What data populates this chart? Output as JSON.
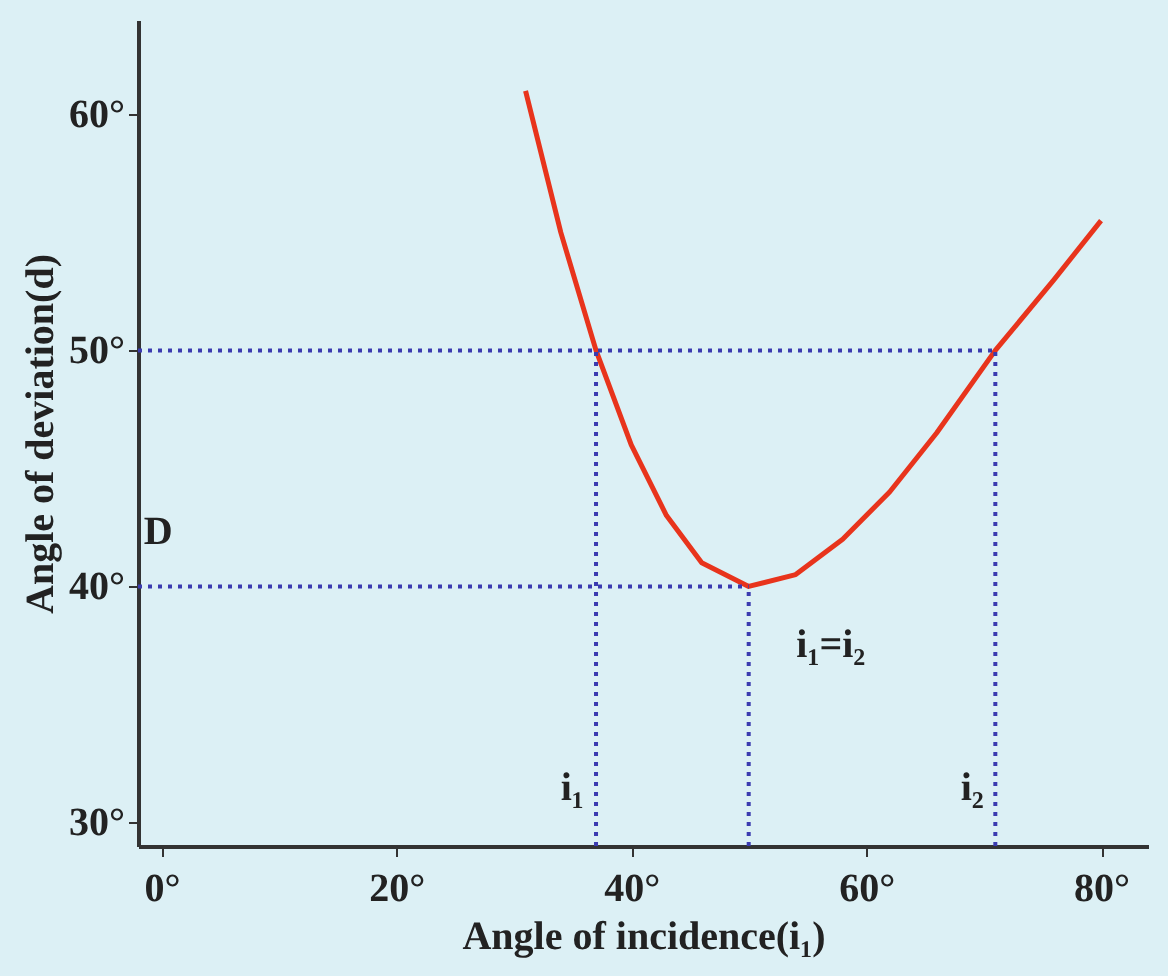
{
  "chart_data": {
    "type": "line",
    "xlabel": "Angle of incidence(i₁)",
    "ylabel": "Angle of deviation(d)",
    "xlim": [
      -2,
      84
    ],
    "ylim": [
      29,
      64
    ],
    "xticks": [
      {
        "value": 0,
        "label": "0°"
      },
      {
        "value": 20,
        "label": "20°"
      },
      {
        "value": 40,
        "label": "40°"
      },
      {
        "value": 60,
        "label": "60°"
      },
      {
        "value": 80,
        "label": "80°"
      }
    ],
    "yticks": [
      {
        "value": 30,
        "label": "30°"
      },
      {
        "value": 40,
        "label": "40°"
      },
      {
        "value": 50,
        "label": "50°"
      },
      {
        "value": 60,
        "label": "60°"
      }
    ],
    "marker": "none",
    "series": [
      {
        "color": "#e8341c",
        "line_style": "solid",
        "x": [
          31,
          34,
          37,
          40,
          43,
          46,
          50,
          54,
          58,
          62,
          66,
          71,
          76,
          80
        ],
        "values": [
          61,
          55,
          50,
          46,
          43,
          41,
          40,
          40.5,
          42,
          44,
          46.5,
          50,
          53,
          55.5
        ]
      },
      {
        "color": "#3b3bb0",
        "line_style": "dotted",
        "x": [
          -2,
          71
        ],
        "values": [
          50,
          50
        ]
      },
      {
        "color": "#3b3bb0",
        "line_style": "dotted",
        "x": [
          -2,
          50
        ],
        "values": [
          40,
          40
        ]
      },
      {
        "color": "#3b3bb0",
        "line_style": "dotted",
        "x": [
          37,
          37
        ],
        "values": [
          29,
          50
        ]
      },
      {
        "color": "#3b3bb0",
        "line_style": "dotted",
        "x": [
          50,
          50
        ],
        "values": [
          29,
          40
        ]
      },
      {
        "color": "#3b3bb0",
        "line_style": "dotted",
        "x": [
          71,
          71
        ],
        "values": [
          29,
          50
        ]
      }
    ],
    "annotations": [
      "D",
      "i₁",
      "i₂",
      "i₁=i₂"
    ]
  }
}
